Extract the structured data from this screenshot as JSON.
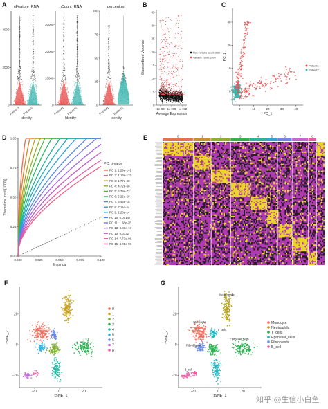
{
  "panels": {
    "A": {
      "label": "A"
    },
    "B": {
      "label": "B"
    },
    "C": {
      "label": "C"
    },
    "D": {
      "label": "D"
    },
    "E": {
      "label": "E"
    },
    "F": {
      "label": "F"
    },
    "G": {
      "label": "G"
    }
  },
  "watermark": "知乎 @生信小白鱼",
  "chart_data": [
    {
      "panel": "A",
      "type": "violin",
      "subplots": [
        {
          "title": "nFeature_RNA",
          "yticks": [
            "0",
            "2000",
            "4000"
          ],
          "ylim": [
            0,
            5000
          ],
          "xlabel": "Identity",
          "categories": [
            "Patient1",
            "Patient2"
          ],
          "medians": [
            600,
            500
          ]
        },
        {
          "title": "nCount_RNA",
          "yticks": [
            "0",
            "10000",
            "20000",
            "30000"
          ],
          "ylim": [
            0,
            35000
          ],
          "xlabel": "Identity",
          "categories": [
            "Patient1",
            "Patient2"
          ],
          "medians": [
            1500,
            1200
          ]
        },
        {
          "title": "percent.mt",
          "yticks": [
            "0",
            "25",
            "50",
            "75",
            "100"
          ],
          "ylim": [
            0,
            100
          ],
          "xlabel": "Identity",
          "categories": [
            "Patient1",
            "Patient2"
          ],
          "medians": [
            12,
            18
          ]
        }
      ],
      "colors": [
        "#e8504e",
        "#3fb6b0"
      ]
    },
    {
      "panel": "B",
      "type": "scatter",
      "xlabel": "Average Expression",
      "ylabel": "Standardized Variance",
      "xticks": [
        "1e-02",
        "1e+00",
        "1e+02"
      ],
      "yticks": [
        "0",
        "5",
        "10",
        "15",
        "20",
        "25",
        "30",
        "35"
      ],
      "ylim": [
        0,
        36
      ],
      "series": [
        {
          "name": "Non-variable count: 22603",
          "color": "#111111"
        },
        {
          "name": "Variable count: 2000",
          "color": "#e8504e"
        }
      ]
    },
    {
      "panel": "C",
      "type": "scatter",
      "xlabel": "PC_1",
      "ylabel": "PC_2",
      "xticks": [
        "0",
        "10",
        "20",
        "30",
        "40"
      ],
      "yticks": [
        "0",
        "10",
        "20",
        "30"
      ],
      "xlim": [
        -5,
        45
      ],
      "ylim": [
        -6,
        36
      ],
      "series": [
        {
          "name": "Patient1",
          "color": "#e8504e"
        },
        {
          "name": "Patient2",
          "color": "#3fb6b0"
        }
      ]
    },
    {
      "panel": "D",
      "type": "line",
      "xlabel": "Empirical",
      "ylabel": "Theoretical [runif(1000)]",
      "xticks": [
        "0.000",
        "0.025",
        "0.050",
        "0.075",
        "0.100"
      ],
      "yticks": [
        "0.00",
        "0.25",
        "0.50",
        "0.75",
        "1.00"
      ],
      "xlim": [
        0,
        0.1
      ],
      "ylim": [
        0,
        1
      ],
      "legend_title": "PC: p-value",
      "series": [
        {
          "name": "PC 1: 1.29e-149",
          "color": "#f26a4f",
          "k": 0.0025
        },
        {
          "name": "PC 2: 1.13e-122",
          "color": "#d9852a",
          "k": 0.004
        },
        {
          "name": "PC 3: 1.77e-88",
          "color": "#b8a022",
          "k": 0.006
        },
        {
          "name": "PC 4: 4.72e-68",
          "color": "#8fb12a",
          "k": 0.008
        },
        {
          "name": "PC 5: 6.78e-72",
          "color": "#4fb83a",
          "k": 0.01
        },
        {
          "name": "PC 6: 5.25e-58",
          "color": "#27b860",
          "k": 0.013
        },
        {
          "name": "PC 7: 3.45e-15",
          "color": "#1fb493",
          "k": 0.017
        },
        {
          "name": "PC 8: 7.11e-44",
          "color": "#1aaec0",
          "k": 0.021
        },
        {
          "name": "PC 9: 2.28e-14",
          "color": "#2aa0d9",
          "k": 0.026
        },
        {
          "name": "PC 10: 0.00147",
          "color": "#4a8be6",
          "k": 0.033
        },
        {
          "name": "PC 11: 1.68e-25",
          "color": "#7a76e6",
          "k": 0.04
        },
        {
          "name": "PC 12: 8.88e-17",
          "color": "#a465dc",
          "k": 0.05
        },
        {
          "name": "PC 13: 0.0132",
          "color": "#c45ac8",
          "k": 0.062
        },
        {
          "name": "PC 14: 7.73e-08",
          "color": "#e05aa8",
          "k": 0.078
        },
        {
          "name": "PC 15: 3.05e-07",
          "color": "#ee6088",
          "k": 0.095
        }
      ]
    },
    {
      "panel": "E",
      "type": "heatmap",
      "columns": [
        "0",
        "1",
        "2",
        "3",
        "4",
        "5",
        "6",
        "7",
        "8"
      ],
      "column_widths": [
        0.19,
        0.11,
        0.12,
        0.12,
        0.1,
        0.07,
        0.09,
        0.1,
        0.05
      ],
      "column_colors": [
        "#e8704e",
        "#c9902c",
        "#8fae2a",
        "#34b24a",
        "#2fb39a",
        "#2aa7d6",
        "#6f86e8",
        "#c966d6",
        "#e85aa0"
      ],
      "palette": {
        "low": "#b03ab0",
        "mid": "#1b1b1b",
        "high": "#f2e320"
      }
    },
    {
      "panel": "F",
      "type": "scatter",
      "xlabel": "tSNE_1",
      "ylabel": "tSNE_2",
      "xticks": [
        "-20",
        "0",
        "20"
      ],
      "yticks": [
        "-20",
        "0",
        "20"
      ],
      "xlim": [
        -32,
        35
      ],
      "ylim": [
        -28,
        38
      ],
      "series": [
        {
          "name": "0",
          "color": "#f26a5a",
          "center": [
            -15,
            8
          ]
        },
        {
          "name": "1",
          "color": "#c9a21f",
          "center": [
            7,
            22
          ]
        },
        {
          "name": "2",
          "color": "#7cae2c",
          "center": [
            -3,
            -3
          ]
        },
        {
          "name": "3",
          "color": "#27b04f",
          "center": [
            20,
            -2
          ]
        },
        {
          "name": "4",
          "color": "#1fb5a0",
          "center": [
            -2,
            -16
          ]
        },
        {
          "name": "5",
          "color": "#2ab0e0",
          "center": [
            -14,
            -2
          ]
        },
        {
          "name": "6",
          "color": "#6a8ae8",
          "center": [
            -4,
            7
          ]
        },
        {
          "name": "7",
          "color": "#c466e0",
          "center": [
            -26,
            -20
          ]
        },
        {
          "name": "8",
          "color": "#ee5aa4",
          "center": [
            -20,
            -19
          ]
        }
      ]
    },
    {
      "panel": "G",
      "type": "scatter",
      "xlabel": "tSNE_1",
      "ylabel": "tSNE_2",
      "xticks": [
        "-20",
        "0",
        "20"
      ],
      "yticks": [
        "-20",
        "0",
        "20"
      ],
      "xlim": [
        -32,
        35
      ],
      "ylim": [
        -28,
        38
      ],
      "series": [
        {
          "name": "Monocyte",
          "color": "#f26a5a"
        },
        {
          "name": "Neutrophils",
          "color": "#b2a01e"
        },
        {
          "name": "T_cells",
          "color": "#27b04f"
        },
        {
          "name": "Epithelial_cells",
          "color": "#1fb5c0"
        },
        {
          "name": "Fibroblasts",
          "color": "#6a8ae8"
        },
        {
          "name": "B_cell",
          "color": "#ee5aa4"
        }
      ],
      "cluster_labels": [
        "Monocyte",
        "Neutrophils",
        "Fibroblasts",
        "Epithelial_cells",
        "T_cells",
        "B_cell"
      ]
    }
  ]
}
